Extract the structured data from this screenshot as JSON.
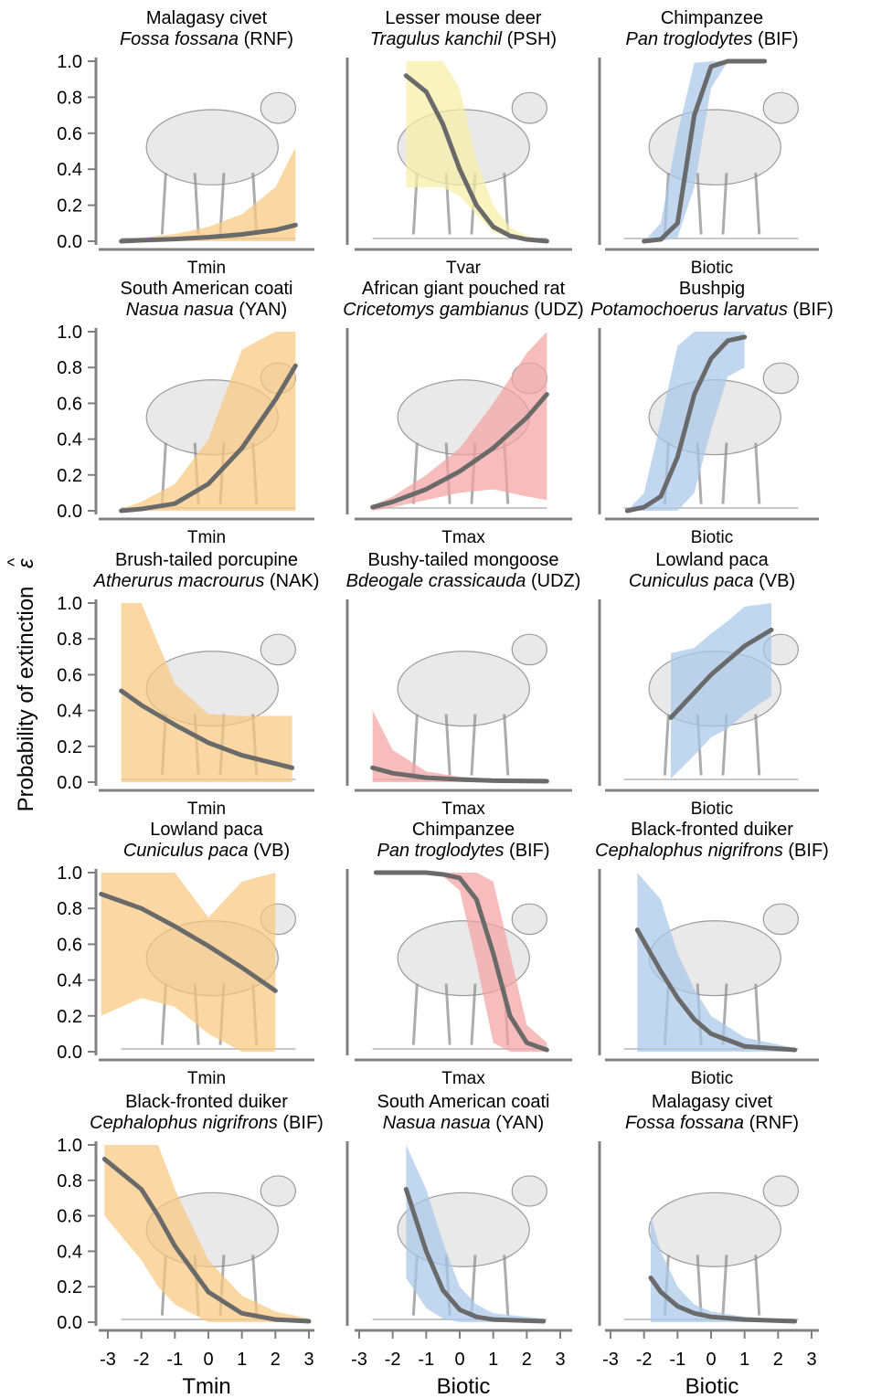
{
  "figure": {
    "y_axis_label": "Probability of extinction",
    "y_axis_symbol": "ε",
    "y_axis_hat": "^",
    "y_ticks": [
      "0.0",
      "0.2",
      "0.4",
      "0.6",
      "0.8",
      "1.0"
    ],
    "x_ticks": [
      "-3",
      "-2",
      "-1",
      "0",
      "1",
      "2",
      "3"
    ],
    "bottom_labels": [
      "Tmin",
      "Biotic",
      "Biotic"
    ]
  },
  "colors": {
    "Tmin": "#f9c97f",
    "Tvar": "#f7f0a6",
    "Tmax": "#f4a3a3",
    "Biotic": "#a9c8ea",
    "curve": "#6a6a6a",
    "axis": "#808080"
  },
  "chart_data": [
    {
      "type": "line",
      "common": "Malagasy civet",
      "species": "Fossa fossana",
      "code": "(RNF)",
      "xlabel": "Tmin",
      "band": "Tmin",
      "animal": "civet",
      "xlim": [
        -3,
        3
      ],
      "ylim": [
        0,
        1
      ],
      "x": [
        -2.6,
        -2,
        -1,
        0,
        1,
        2,
        2.6
      ],
      "y": [
        0.0,
        0.005,
        0.012,
        0.022,
        0.038,
        0.062,
        0.09
      ],
      "band_lower": [
        0.0,
        0.0,
        0.0,
        0.0,
        0.0,
        0.0,
        0.0
      ],
      "band_upper": [
        0.01,
        0.02,
        0.04,
        0.08,
        0.15,
        0.3,
        0.52
      ]
    },
    {
      "type": "line",
      "common": "Lesser mouse deer",
      "species": "Tragulus kanchil",
      "code": "(PSH)",
      "xlabel": "Tvar",
      "band": "Tvar",
      "animal": "deer",
      "xlim": [
        -3,
        3
      ],
      "ylim": [
        0,
        1
      ],
      "x": [
        -1.6,
        -1,
        -0.5,
        0,
        0.5,
        1,
        1.5,
        2,
        2.6
      ],
      "y": [
        0.92,
        0.83,
        0.65,
        0.4,
        0.2,
        0.08,
        0.03,
        0.01,
        0.0
      ],
      "band_lower": [
        0.3,
        0.3,
        0.3,
        0.25,
        0.15,
        0.05,
        0.02,
        0.0,
        0.0
      ],
      "band_upper": [
        1.0,
        1.0,
        1.0,
        0.85,
        0.45,
        0.2,
        0.08,
        0.03,
        0.01
      ]
    },
    {
      "type": "line",
      "common": "Chimpanzee",
      "species": "Pan troglodytes",
      "code": "(BIF)",
      "xlabel": "Biotic",
      "band": "Biotic",
      "animal": "chimp",
      "xlim": [
        -3,
        3
      ],
      "ylim": [
        0,
        1
      ],
      "x": [
        -2,
        -1.5,
        -1,
        -0.5,
        0,
        0.5,
        1,
        1.6
      ],
      "y": [
        0.0,
        0.01,
        0.1,
        0.7,
        0.97,
        1.0,
        1.0,
        1.0
      ],
      "band_lower": [
        0.0,
        0.0,
        0.02,
        0.3,
        0.85,
        1.0,
        1.0,
        1.0
      ],
      "band_upper": [
        0.0,
        0.1,
        0.6,
        0.99,
        1.0,
        1.0,
        1.0,
        1.0
      ]
    },
    {
      "type": "line",
      "common": "South American coati",
      "species": "Nasua nasua",
      "code": "(YAN)",
      "xlabel": "Tmin",
      "band": "Tmin",
      "animal": "coati",
      "xlim": [
        -3,
        3
      ],
      "ylim": [
        0,
        1
      ],
      "x": [
        -2.6,
        -2,
        -1,
        0,
        1,
        2,
        2.6
      ],
      "y": [
        0.0,
        0.01,
        0.04,
        0.15,
        0.35,
        0.62,
        0.81
      ],
      "band_lower": [
        0.0,
        0.0,
        0.0,
        0.0,
        0.0,
        0.0,
        0.0
      ],
      "band_upper": [
        0.01,
        0.05,
        0.15,
        0.4,
        0.9,
        1.0,
        1.0
      ]
    },
    {
      "type": "line",
      "common": "African giant pouched rat",
      "species": "Cricetomys gambianus",
      "code": "(UDZ)",
      "xlabel": "Tmax",
      "band": "Tmax",
      "animal": "rat",
      "xlim": [
        -3,
        3
      ],
      "ylim": [
        0,
        1
      ],
      "x": [
        -2.6,
        -2,
        -1,
        0,
        1,
        2,
        2.6
      ],
      "y": [
        0.02,
        0.05,
        0.12,
        0.22,
        0.35,
        0.52,
        0.65
      ],
      "band_lower": [
        0.0,
        0.02,
        0.06,
        0.1,
        0.12,
        0.08,
        0.06
      ],
      "band_upper": [
        0.03,
        0.08,
        0.2,
        0.35,
        0.6,
        0.88,
        1.0
      ]
    },
    {
      "type": "line",
      "common": "Bushpig",
      "species": "Potamochoerus larvatus",
      "code": "(BIF)",
      "xlabel": "Biotic",
      "band": "Biotic",
      "animal": "pig",
      "xlim": [
        -3,
        3
      ],
      "ylim": [
        0,
        1
      ],
      "x": [
        -2.5,
        -2,
        -1.5,
        -1,
        -0.5,
        0,
        0.5,
        1
      ],
      "y": [
        0.0,
        0.02,
        0.08,
        0.3,
        0.65,
        0.85,
        0.95,
        0.97
      ],
      "band_lower": [
        0.0,
        0.0,
        0.0,
        0.0,
        0.1,
        0.45,
        0.75,
        0.8
      ],
      "band_upper": [
        0.0,
        0.1,
        0.5,
        0.92,
        1.0,
        1.0,
        1.0,
        1.0
      ]
    },
    {
      "type": "line",
      "common": "Brush-tailed porcupine",
      "species": "Atherurus macrourus",
      "code": "(NAK)",
      "xlabel": "Tmin",
      "band": "Tmin",
      "animal": "porcupine",
      "xlim": [
        -3,
        3
      ],
      "ylim": [
        0,
        1
      ],
      "x": [
        -2.6,
        -2,
        -1,
        0,
        1,
        2.5
      ],
      "y": [
        0.51,
        0.43,
        0.32,
        0.22,
        0.15,
        0.08
      ],
      "band_lower": [
        0.0,
        0.0,
        0.0,
        0.0,
        0.0,
        0.0
      ],
      "band_upper": [
        1.0,
        1.0,
        0.55,
        0.38,
        0.37,
        0.37
      ]
    },
    {
      "type": "line",
      "common": "Bushy-tailed mongoose",
      "species": "Bdeogale crassicauda",
      "code": "(UDZ)",
      "xlabel": "Tmax",
      "band": "Tmax",
      "animal": "mongoose",
      "xlim": [
        -3,
        3
      ],
      "ylim": [
        0,
        1
      ],
      "x": [
        -2.6,
        -2,
        -1,
        0,
        1,
        2.6
      ],
      "y": [
        0.08,
        0.05,
        0.025,
        0.015,
        0.008,
        0.005
      ],
      "band_lower": [
        0.0,
        0.0,
        0.0,
        0.0,
        0.0,
        0.0
      ],
      "band_upper": [
        0.4,
        0.18,
        0.06,
        0.03,
        0.02,
        0.01
      ]
    },
    {
      "type": "line",
      "common": "Lowland paca",
      "species": "Cuniculus paca",
      "code": "(VB)",
      "xlabel": "Biotic",
      "band": "Biotic",
      "animal": "paca",
      "xlim": [
        -3,
        3
      ],
      "ylim": [
        0,
        1
      ],
      "x": [
        -1.2,
        -0.5,
        0,
        0.5,
        1,
        1.8
      ],
      "y": [
        0.36,
        0.5,
        0.6,
        0.68,
        0.76,
        0.85
      ],
      "band_lower": [
        0.02,
        0.15,
        0.25,
        0.3,
        0.38,
        0.48
      ],
      "band_upper": [
        0.72,
        0.75,
        0.83,
        0.9,
        0.98,
        1.0
      ]
    },
    {
      "type": "line",
      "common": "Lowland paca",
      "species": "Cuniculus paca",
      "code": "(VB)",
      "xlabel": "Tmin",
      "band": "Tmin",
      "animal": "paca",
      "xlim": [
        -3,
        3
      ],
      "ylim": [
        0,
        1
      ],
      "x": [
        -3.2,
        -2,
        -1,
        0,
        1,
        2
      ],
      "y": [
        0.88,
        0.8,
        0.7,
        0.59,
        0.47,
        0.34
      ],
      "band_lower": [
        0.2,
        0.3,
        0.25,
        0.1,
        0.0,
        0.0
      ],
      "band_upper": [
        1.0,
        1.0,
        1.0,
        0.75,
        0.95,
        1.0
      ]
    },
    {
      "type": "line",
      "common": "Chimpanzee",
      "species": "Pan troglodytes",
      "code": "(BIF)",
      "xlabel": "Tmax",
      "band": "Tmax",
      "animal": "chimp",
      "xlim": [
        -3,
        3
      ],
      "ylim": [
        0,
        1
      ],
      "x": [
        -2.5,
        -1,
        -0.5,
        0,
        0.5,
        1,
        1.5,
        2,
        2.6
      ],
      "y": [
        1.0,
        1.0,
        0.99,
        0.97,
        0.85,
        0.55,
        0.2,
        0.05,
        0.01
      ],
      "band_lower": [
        1.0,
        1.0,
        0.98,
        0.9,
        0.5,
        0.05,
        0.0,
        0.0,
        0.0
      ],
      "band_upper": [
        1.0,
        1.0,
        1.0,
        1.0,
        1.0,
        0.95,
        0.55,
        0.15,
        0.05
      ]
    },
    {
      "type": "line",
      "common": "Black-fronted duiker",
      "species": "Cephalophus nigrifrons",
      "code": "(BIF)",
      "xlabel": "Biotic",
      "band": "Biotic",
      "animal": "duiker",
      "xlim": [
        -3,
        3
      ],
      "ylim": [
        0,
        1
      ],
      "x": [
        -2.2,
        -1.5,
        -1,
        -0.5,
        0,
        1,
        2.5
      ],
      "y": [
        0.68,
        0.45,
        0.3,
        0.18,
        0.1,
        0.03,
        0.01
      ],
      "band_lower": [
        0.0,
        0.0,
        0.0,
        0.0,
        0.0,
        0.0,
        0.0
      ],
      "band_upper": [
        1.0,
        0.85,
        0.55,
        0.35,
        0.2,
        0.08,
        0.02
      ]
    },
    {
      "type": "line",
      "common": "Black-fronted duiker",
      "species": "Cephalophus nigrifrons",
      "code": "(BIF)",
      "xlabel": "Tmin",
      "band": "Tmin",
      "animal": "duiker",
      "xlim": [
        -3,
        3
      ],
      "ylim": [
        0,
        1
      ],
      "x": [
        -3.1,
        -2,
        -1.5,
        -1,
        0,
        1,
        2,
        3
      ],
      "y": [
        0.92,
        0.75,
        0.6,
        0.43,
        0.17,
        0.05,
        0.015,
        0.005
      ],
      "band_lower": [
        0.6,
        0.35,
        0.2,
        0.1,
        0.0,
        0.0,
        0.0,
        0.0
      ],
      "band_upper": [
        1.0,
        1.0,
        1.0,
        0.75,
        0.35,
        0.15,
        0.06,
        0.02
      ]
    },
    {
      "type": "line",
      "common": "South American coati",
      "species": "Nasua nasua",
      "code": "(YAN)",
      "xlabel": "Biotic",
      "band": "Biotic",
      "animal": "coati",
      "xlim": [
        -3,
        3
      ],
      "ylim": [
        0,
        1
      ],
      "x": [
        -1.6,
        -1,
        -0.5,
        0,
        0.5,
        1,
        2.5
      ],
      "y": [
        0.75,
        0.4,
        0.18,
        0.07,
        0.03,
        0.015,
        0.005
      ],
      "band_lower": [
        0.25,
        0.08,
        0.02,
        0.0,
        0.0,
        0.0,
        0.0
      ],
      "band_upper": [
        1.0,
        0.75,
        0.45,
        0.2,
        0.1,
        0.05,
        0.02
      ]
    },
    {
      "type": "line",
      "common": "Malagasy civet",
      "species": "Fossa fossana",
      "code": "(RNF)",
      "xlabel": "Biotic",
      "band": "Biotic",
      "animal": "civet",
      "xlim": [
        -3,
        3
      ],
      "ylim": [
        0,
        1
      ],
      "x": [
        -1.8,
        -1.5,
        -1,
        -0.5,
        0,
        1,
        2.5
      ],
      "y": [
        0.25,
        0.17,
        0.09,
        0.05,
        0.03,
        0.015,
        0.005
      ],
      "band_lower": [
        0.0,
        0.0,
        0.0,
        0.0,
        0.0,
        0.0,
        0.0
      ],
      "band_upper": [
        0.6,
        0.4,
        0.2,
        0.1,
        0.06,
        0.03,
        0.01
      ]
    }
  ]
}
